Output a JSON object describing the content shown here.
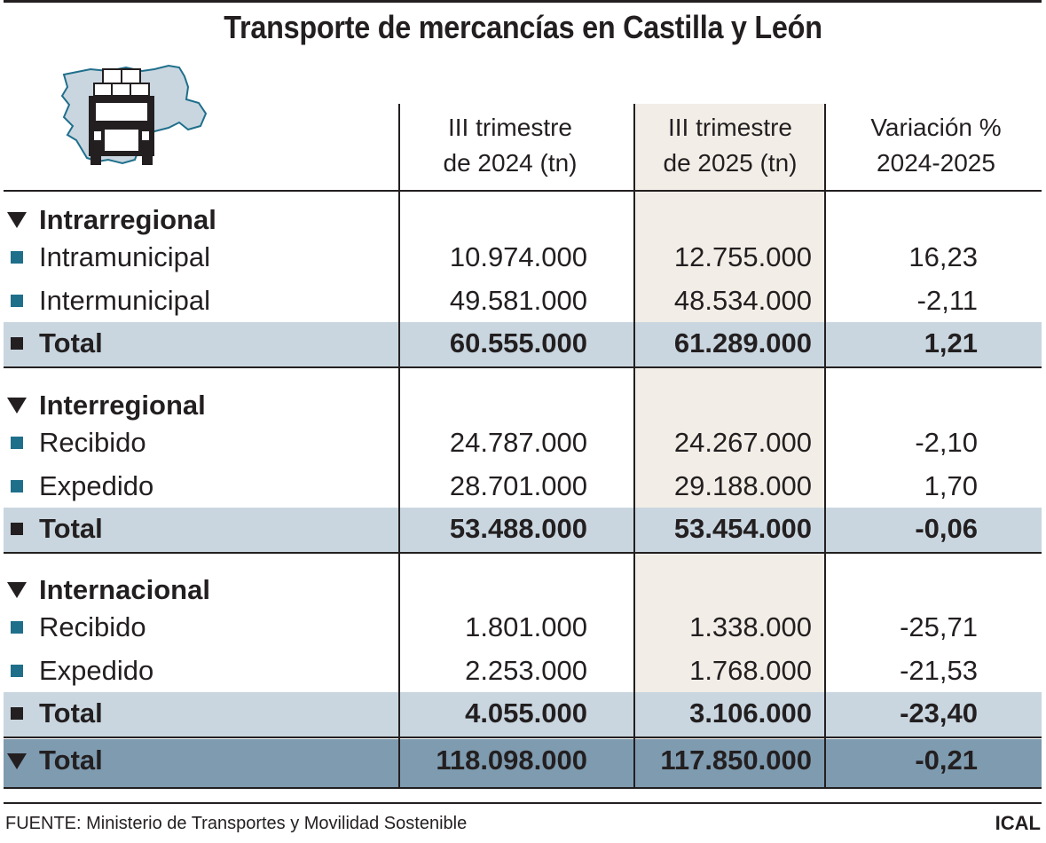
{
  "title": "Transporte de mercancías en Castilla y León",
  "icon": "truck-on-castilla-y-leon-map-icon",
  "colors": {
    "bullet": "#1f6f8b",
    "total_band": "#c9d6e0",
    "grand_total_band": "#7e9bb0",
    "highlight_column": "#f2eee7"
  },
  "chart_data": {
    "type": "table",
    "columns": [
      {
        "line1": "III trimestre",
        "line2": "de 2024 (tn)"
      },
      {
        "line1": "III trimestre",
        "line2": "de 2025 (tn)"
      },
      {
        "line1": "Variación %",
        "line2": "2024-2025"
      }
    ],
    "sections": [
      {
        "name": "Intrarregional",
        "rows": [
          {
            "label": "Intramunicipal",
            "v2024": "10.974.000",
            "v2025": "12.755.000",
            "var": "16,23"
          },
          {
            "label": "Intermunicipal",
            "v2024": "49.581.000",
            "v2025": "48.534.000",
            "var": "-2,11"
          }
        ],
        "total": {
          "label": "Total",
          "v2024": "60.555.000",
          "v2025": "61.289.000",
          "var": "1,21"
        }
      },
      {
        "name": "Interregional",
        "rows": [
          {
            "label": "Recibido",
            "v2024": "24.787.000",
            "v2025": "24.267.000",
            "var": "-2,10"
          },
          {
            "label": "Expedido",
            "v2024": "28.701.000",
            "v2025": "29.188.000",
            "var": "1,70"
          }
        ],
        "total": {
          "label": "Total",
          "v2024": "53.488.000",
          "v2025": "53.454.000",
          "var": "-0,06"
        }
      },
      {
        "name": "Internacional",
        "rows": [
          {
            "label": "Recibido",
            "v2024": "1.801.000",
            "v2025": "1.338.000",
            "var": "-25,71"
          },
          {
            "label": "Expedido",
            "v2024": "2.253.000",
            "v2025": "1.768.000",
            "var": "-21,53"
          }
        ],
        "total": {
          "label": "Total",
          "v2024": "4.055.000",
          "v2025": "3.106.000",
          "var": "-23,40"
        }
      }
    ],
    "grand_total": {
      "label": "Total",
      "v2024": "118.098.000",
      "v2025": "117.850.000",
      "var": "-0,21"
    }
  },
  "footer": {
    "source": "FUENTE: Ministerio de Transportes y Movilidad Sostenible",
    "brand": "ICAL"
  }
}
